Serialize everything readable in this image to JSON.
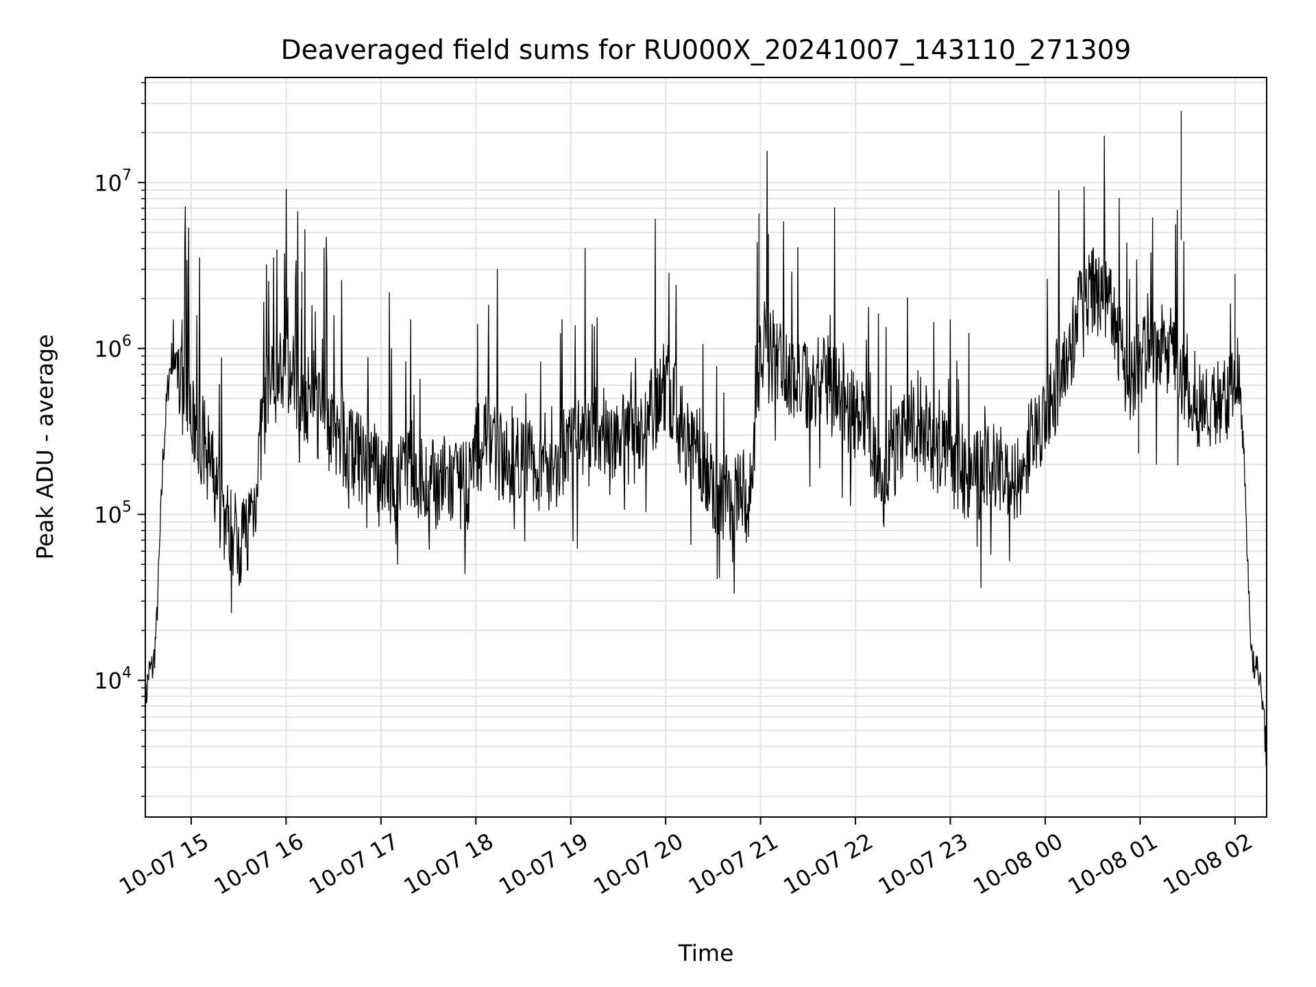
{
  "chart_data": {
    "type": "line",
    "title": "Deaveraged field sums for RU000X_20241007_143110_271309",
    "xlabel": "Time",
    "ylabel": "Peak ADU - average",
    "yscale": "log",
    "ylim": [
      1500,
      43000000
    ],
    "xlim": [
      "2024-10-07 14:31",
      "2024-10-08 02:20"
    ],
    "grid": "major and minor, light gray",
    "line_color": "#000000",
    "x_ticks": [
      {
        "value": "2024-10-07 15:00",
        "label": "10-07 15"
      },
      {
        "value": "2024-10-07 16:00",
        "label": "10-07 16"
      },
      {
        "value": "2024-10-07 17:00",
        "label": "10-07 17"
      },
      {
        "value": "2024-10-07 18:00",
        "label": "10-07 18"
      },
      {
        "value": "2024-10-07 19:00",
        "label": "10-07 19"
      },
      {
        "value": "2024-10-07 20:00",
        "label": "10-07 20"
      },
      {
        "value": "2024-10-07 21:00",
        "label": "10-07 21"
      },
      {
        "value": "2024-10-07 22:00",
        "label": "10-07 22"
      },
      {
        "value": "2024-10-07 23:00",
        "label": "10-07 23"
      },
      {
        "value": "2024-10-08 00:00",
        "label": "10-08 00"
      },
      {
        "value": "2024-10-08 01:00",
        "label": "10-08 01"
      },
      {
        "value": "2024-10-08 02:00",
        "label": "10-08 02"
      }
    ],
    "y_ticks": [
      {
        "value": 10000,
        "base": "10",
        "exp": "4"
      },
      {
        "value": 100000,
        "base": "10",
        "exp": "5"
      },
      {
        "value": 1000000,
        "base": "10",
        "exp": "6"
      },
      {
        "value": 10000000,
        "base": "10",
        "exp": "7"
      }
    ],
    "series": [
      {
        "points": [
          [
            "2024-10-07 14:31",
            7000
          ],
          [
            "2024-10-07 14:33",
            11000
          ],
          [
            "2024-10-07 14:36",
            12000
          ],
          [
            "2024-10-07 14:38",
            20000
          ],
          [
            "2024-10-07 14:40",
            60000
          ],
          [
            "2024-10-07 14:42",
            200000
          ],
          [
            "2024-10-07 14:44",
            400000
          ],
          [
            "2024-10-07 14:46",
            700000
          ],
          [
            "2024-10-07 14:48",
            900000
          ],
          [
            "2024-10-07 14:50",
            800000
          ],
          [
            "2024-10-07 14:53",
            600000
          ],
          [
            "2024-10-07 14:56",
            550000
          ],
          [
            "2024-10-07 15:00",
            350000
          ],
          [
            "2024-10-07 15:05",
            300000
          ],
          [
            "2024-10-07 15:10",
            250000
          ],
          [
            "2024-10-07 15:15",
            150000
          ],
          [
            "2024-10-07 15:20",
            100000
          ],
          [
            "2024-10-07 15:25",
            80000
          ],
          [
            "2024-10-07 15:30",
            70000
          ],
          [
            "2024-10-07 15:35",
            80000
          ],
          [
            "2024-10-07 15:40",
            120000
          ],
          [
            "2024-10-07 15:45",
            350000
          ],
          [
            "2024-10-07 15:50",
            600000
          ],
          [
            "2024-10-07 15:55",
            700000
          ],
          [
            "2024-10-07 16:00",
            750000
          ],
          [
            "2024-10-07 16:05",
            650000
          ],
          [
            "2024-10-07 16:10",
            550000
          ],
          [
            "2024-10-07 16:20",
            400000
          ],
          [
            "2024-10-07 16:30",
            300000
          ],
          [
            "2024-10-07 16:40",
            250000
          ],
          [
            "2024-10-07 16:50",
            200000
          ],
          [
            "2024-10-07 17:00",
            180000
          ],
          [
            "2024-10-07 17:10",
            160000
          ],
          [
            "2024-10-07 17:20",
            170000
          ],
          [
            "2024-10-07 17:30",
            150000
          ],
          [
            "2024-10-07 17:40",
            160000
          ],
          [
            "2024-10-07 17:50",
            140000
          ],
          [
            "2024-10-07 17:55",
            150000
          ],
          [
            "2024-10-07 18:00",
            250000
          ],
          [
            "2024-10-07 18:05",
            300000
          ],
          [
            "2024-10-07 18:10",
            280000
          ],
          [
            "2024-10-07 18:20",
            200000
          ],
          [
            "2024-10-07 18:30",
            220000
          ],
          [
            "2024-10-07 18:40",
            190000
          ],
          [
            "2024-10-07 18:50",
            200000
          ],
          [
            "2024-10-07 19:00",
            250000
          ],
          [
            "2024-10-07 19:10",
            300000
          ],
          [
            "2024-10-07 19:20",
            320000
          ],
          [
            "2024-10-07 19:30",
            300000
          ],
          [
            "2024-10-07 19:40",
            280000
          ],
          [
            "2024-10-07 19:50",
            400000
          ],
          [
            "2024-10-07 20:00",
            600000
          ],
          [
            "2024-10-07 20:05",
            500000
          ],
          [
            "2024-10-07 20:10",
            300000
          ],
          [
            "2024-10-07 20:20",
            250000
          ],
          [
            "2024-10-07 20:30",
            150000
          ],
          [
            "2024-10-07 20:40",
            120000
          ],
          [
            "2024-10-07 20:50",
            130000
          ],
          [
            "2024-10-07 20:55",
            150000
          ],
          [
            "2024-10-07 21:00",
            1000000
          ],
          [
            "2024-10-07 21:05",
            1200000
          ],
          [
            "2024-10-07 21:10",
            900000
          ],
          [
            "2024-10-07 21:20",
            700000
          ],
          [
            "2024-10-07 21:30",
            600000
          ],
          [
            "2024-10-07 21:40",
            700000
          ],
          [
            "2024-10-07 21:50",
            500000
          ],
          [
            "2024-10-07 22:00",
            400000
          ],
          [
            "2024-10-07 22:10",
            250000
          ],
          [
            "2024-10-07 22:20",
            200000
          ],
          [
            "2024-10-07 22:30",
            300000
          ],
          [
            "2024-10-07 22:40",
            400000
          ],
          [
            "2024-10-07 22:50",
            250000
          ],
          [
            "2024-10-07 23:00",
            200000
          ],
          [
            "2024-10-07 23:10",
            150000
          ],
          [
            "2024-10-07 23:20",
            180000
          ],
          [
            "2024-10-07 23:30",
            200000
          ],
          [
            "2024-10-07 23:40",
            150000
          ],
          [
            "2024-10-07 23:50",
            250000
          ],
          [
            "2024-10-08 00:00",
            400000
          ],
          [
            "2024-10-08 00:05",
            500000
          ],
          [
            "2024-10-08 00:10",
            700000
          ],
          [
            "2024-10-08 00:15",
            900000
          ],
          [
            "2024-10-08 00:20",
            1500000
          ],
          [
            "2024-10-08 00:25",
            2000000
          ],
          [
            "2024-10-08 00:30",
            2200000
          ],
          [
            "2024-10-08 00:35",
            2000000
          ],
          [
            "2024-10-08 00:40",
            1800000
          ],
          [
            "2024-10-08 00:45",
            1200000
          ],
          [
            "2024-10-08 00:50",
            800000
          ],
          [
            "2024-10-08 00:55",
            600000
          ],
          [
            "2024-10-08 01:00",
            800000
          ],
          [
            "2024-10-08 01:05",
            1200000
          ],
          [
            "2024-10-08 01:10",
            1000000
          ],
          [
            "2024-10-08 01:15",
            1100000
          ],
          [
            "2024-10-08 01:20",
            900000
          ],
          [
            "2024-10-08 01:25",
            700000
          ],
          [
            "2024-10-08 01:30",
            600000
          ],
          [
            "2024-10-08 01:35",
            500000
          ],
          [
            "2024-10-08 01:40",
            450000
          ],
          [
            "2024-10-08 01:45",
            400000
          ],
          [
            "2024-10-08 01:50",
            500000
          ],
          [
            "2024-10-08 01:55",
            600000
          ],
          [
            "2024-10-08 02:00",
            700000
          ],
          [
            "2024-10-08 02:02",
            800000
          ],
          [
            "2024-10-08 02:05",
            300000
          ],
          [
            "2024-10-08 02:07",
            100000
          ],
          [
            "2024-10-08 02:09",
            30000
          ],
          [
            "2024-10-08 02:11",
            12000
          ],
          [
            "2024-10-08 02:14",
            11000
          ],
          [
            "2024-10-08 02:17",
            9000
          ],
          [
            "2024-10-08 02:20",
            3500
          ]
        ]
      }
    ],
    "spikes": [
      {
        "x": "2024-10-08 00:59",
        "y": 1400000
      },
      {
        "x": "2024-10-08 01:26",
        "y": 27000000
      },
      {
        "x": "2024-10-07 20:59",
        "y": 6500000
      },
      {
        "x": "2024-10-07 21:05",
        "y": 4900000
      },
      {
        "x": "2024-10-07 16:10",
        "y": 2900000
      },
      {
        "x": "2024-10-08 02:00",
        "y": 2800000
      }
    ]
  }
}
